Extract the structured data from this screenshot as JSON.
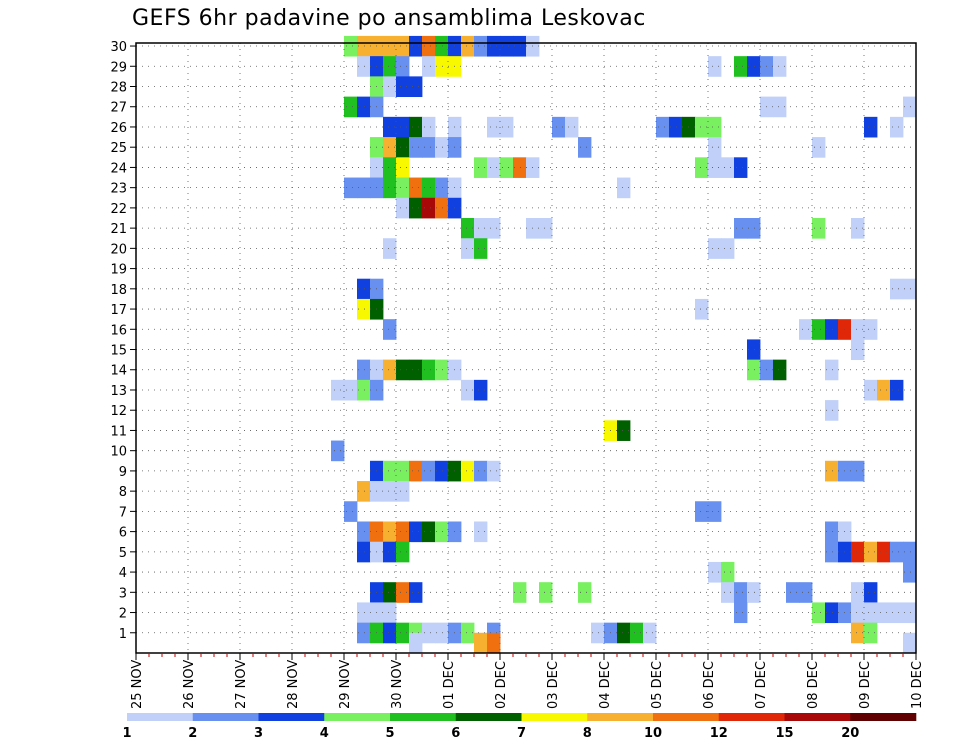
{
  "chart_data": {
    "type": "heatmap",
    "title": "GEFS 6hr padavine po ansamblima Leskovac",
    "xlabel": "",
    "ylabel": "",
    "y_ticks": [
      "1",
      "2",
      "3",
      "4",
      "5",
      "6",
      "7",
      "8",
      "9",
      "10",
      "11",
      "12",
      "13",
      "14",
      "15",
      "16",
      "17",
      "18",
      "19",
      "20",
      "21",
      "22",
      "23",
      "24",
      "25",
      "26",
      "27",
      "28",
      "29",
      "30"
    ],
    "x_ticks": [
      "25 NOV",
      "26 NOV",
      "27 NOV",
      "28 NOV",
      "29 NOV",
      "30 NOV",
      "01 DEC",
      "02 DEC",
      "03 DEC",
      "04 DEC",
      "05 DEC",
      "06 DEC",
      "07 DEC",
      "08 DEC",
      "09 DEC",
      "10 DEC"
    ],
    "x_range_6h_steps": [
      0,
      60
    ],
    "y_range_members": [
      0,
      30
    ],
    "grid": true,
    "colorbar": {
      "position": "bottom",
      "labels": [
        "1",
        "2",
        "3",
        "4",
        "5",
        "6",
        "7",
        "8",
        "10",
        "12",
        "15",
        "20"
      ],
      "colors": [
        "#c0d0f8",
        "#6890f0",
        "#1040e0",
        "#78f060",
        "#20c020",
        "#006000",
        "#f8f800",
        "#f8b030",
        "#f07010",
        "#e02808",
        "#a80808",
        "#600000"
      ]
    },
    "cells": [
      {
        "m": 30,
        "s": 16,
        "c": 4
      },
      {
        "m": 30,
        "s": 17,
        "c": 8
      },
      {
        "m": 30,
        "s": 18,
        "c": 8
      },
      {
        "m": 30,
        "s": 19,
        "c": 8
      },
      {
        "m": 30,
        "s": 20,
        "c": 8
      },
      {
        "m": 30,
        "s": 21,
        "c": 3
      },
      {
        "m": 30,
        "s": 22,
        "c": 9
      },
      {
        "m": 30,
        "s": 23,
        "c": 5
      },
      {
        "m": 30,
        "s": 24,
        "c": 3
      },
      {
        "m": 30,
        "s": 25,
        "c": 8
      },
      {
        "m": 30,
        "s": 26,
        "c": 2
      },
      {
        "m": 30,
        "s": 27,
        "c": 3
      },
      {
        "m": 30,
        "s": 28,
        "c": 3
      },
      {
        "m": 30,
        "s": 29,
        "c": 3
      },
      {
        "m": 30,
        "s": 30,
        "c": 1
      },
      {
        "m": 29,
        "s": 17,
        "c": 1
      },
      {
        "m": 29,
        "s": 18,
        "c": 3
      },
      {
        "m": 29,
        "s": 19,
        "c": 5
      },
      {
        "m": 29,
        "s": 20,
        "c": 2
      },
      {
        "m": 29,
        "s": 22,
        "c": 1
      },
      {
        "m": 29,
        "s": 23,
        "c": 7
      },
      {
        "m": 29,
        "s": 24,
        "c": 7
      },
      {
        "m": 29,
        "s": 44,
        "c": 1
      },
      {
        "m": 29,
        "s": 46,
        "c": 5
      },
      {
        "m": 29,
        "s": 47,
        "c": 3
      },
      {
        "m": 29,
        "s": 48,
        "c": 2
      },
      {
        "m": 29,
        "s": 49,
        "c": 1
      },
      {
        "m": 28,
        "s": 18,
        "c": 4
      },
      {
        "m": 28,
        "s": 19,
        "c": 1
      },
      {
        "m": 28,
        "s": 20,
        "c": 3
      },
      {
        "m": 28,
        "s": 21,
        "c": 3
      },
      {
        "m": 27,
        "s": 16,
        "c": 5
      },
      {
        "m": 27,
        "s": 17,
        "c": 3
      },
      {
        "m": 27,
        "s": 18,
        "c": 2
      },
      {
        "m": 27,
        "s": 48,
        "c": 1
      },
      {
        "m": 27,
        "s": 49,
        "c": 1
      },
      {
        "m": 27,
        "s": 59,
        "c": 1
      },
      {
        "m": 26,
        "s": 19,
        "c": 3
      },
      {
        "m": 26,
        "s": 20,
        "c": 3
      },
      {
        "m": 26,
        "s": 21,
        "c": 6
      },
      {
        "m": 26,
        "s": 22,
        "c": 1
      },
      {
        "m": 26,
        "s": 24,
        "c": 1
      },
      {
        "m": 26,
        "s": 27,
        "c": 1
      },
      {
        "m": 26,
        "s": 28,
        "c": 1
      },
      {
        "m": 26,
        "s": 32,
        "c": 2
      },
      {
        "m": 26,
        "s": 33,
        "c": 1
      },
      {
        "m": 26,
        "s": 40,
        "c": 2
      },
      {
        "m": 26,
        "s": 41,
        "c": 3
      },
      {
        "m": 26,
        "s": 42,
        "c": 6
      },
      {
        "m": 26,
        "s": 43,
        "c": 4
      },
      {
        "m": 26,
        "s": 44,
        "c": 4
      },
      {
        "m": 26,
        "s": 56,
        "c": 3
      },
      {
        "m": 26,
        "s": 58,
        "c": 1
      },
      {
        "m": 25,
        "s": 18,
        "c": 4
      },
      {
        "m": 25,
        "s": 19,
        "c": 8
      },
      {
        "m": 25,
        "s": 20,
        "c": 6
      },
      {
        "m": 25,
        "s": 21,
        "c": 2
      },
      {
        "m": 25,
        "s": 22,
        "c": 2
      },
      {
        "m": 25,
        "s": 23,
        "c": 1
      },
      {
        "m": 25,
        "s": 24,
        "c": 2
      },
      {
        "m": 25,
        "s": 34,
        "c": 2
      },
      {
        "m": 25,
        "s": 44,
        "c": 1
      },
      {
        "m": 25,
        "s": 52,
        "c": 1
      },
      {
        "m": 24,
        "s": 18,
        "c": 1
      },
      {
        "m": 24,
        "s": 19,
        "c": 5
      },
      {
        "m": 24,
        "s": 20,
        "c": 7
      },
      {
        "m": 24,
        "s": 26,
        "c": 4
      },
      {
        "m": 24,
        "s": 27,
        "c": 1
      },
      {
        "m": 24,
        "s": 28,
        "c": 4
      },
      {
        "m": 24,
        "s": 29,
        "c": 9
      },
      {
        "m": 24,
        "s": 30,
        "c": 1
      },
      {
        "m": 24,
        "s": 43,
        "c": 4
      },
      {
        "m": 24,
        "s": 44,
        "c": 1
      },
      {
        "m": 24,
        "s": 45,
        "c": 1
      },
      {
        "m": 24,
        "s": 46,
        "c": 3
      },
      {
        "m": 23,
        "s": 16,
        "c": 2
      },
      {
        "m": 23,
        "s": 17,
        "c": 2
      },
      {
        "m": 23,
        "s": 18,
        "c": 2
      },
      {
        "m": 23,
        "s": 19,
        "c": 5
      },
      {
        "m": 23,
        "s": 20,
        "c": 4
      },
      {
        "m": 23,
        "s": 21,
        "c": 9
      },
      {
        "m": 23,
        "s": 22,
        "c": 5
      },
      {
        "m": 23,
        "s": 23,
        "c": 2
      },
      {
        "m": 23,
        "s": 24,
        "c": 1
      },
      {
        "m": 23,
        "s": 37,
        "c": 1
      },
      {
        "m": 22,
        "s": 20,
        "c": 1
      },
      {
        "m": 22,
        "s": 21,
        "c": 6
      },
      {
        "m": 22,
        "s": 22,
        "c": 11
      },
      {
        "m": 22,
        "s": 23,
        "c": 9
      },
      {
        "m": 22,
        "s": 24,
        "c": 3
      },
      {
        "m": 21,
        "s": 25,
        "c": 5
      },
      {
        "m": 21,
        "s": 26,
        "c": 1
      },
      {
        "m": 21,
        "s": 27,
        "c": 1
      },
      {
        "m": 21,
        "s": 30,
        "c": 1
      },
      {
        "m": 21,
        "s": 31,
        "c": 1
      },
      {
        "m": 21,
        "s": 46,
        "c": 2
      },
      {
        "m": 21,
        "s": 47,
        "c": 2
      },
      {
        "m": 21,
        "s": 52,
        "c": 4
      },
      {
        "m": 21,
        "s": 55,
        "c": 1
      },
      {
        "m": 20,
        "s": 19,
        "c": 1
      },
      {
        "m": 20,
        "s": 25,
        "c": 1
      },
      {
        "m": 20,
        "s": 26,
        "c": 5
      },
      {
        "m": 20,
        "s": 44,
        "c": 1
      },
      {
        "m": 20,
        "s": 45,
        "c": 1
      },
      {
        "m": 18,
        "s": 17,
        "c": 3
      },
      {
        "m": 18,
        "s": 18,
        "c": 2
      },
      {
        "m": 18,
        "s": 58,
        "c": 1
      },
      {
        "m": 18,
        "s": 59,
        "c": 1
      },
      {
        "m": 17,
        "s": 17,
        "c": 7
      },
      {
        "m": 17,
        "s": 18,
        "c": 6
      },
      {
        "m": 17,
        "s": 43,
        "c": 1
      },
      {
        "m": 16,
        "s": 19,
        "c": 2
      },
      {
        "m": 16,
        "s": 51,
        "c": 1
      },
      {
        "m": 16,
        "s": 52,
        "c": 5
      },
      {
        "m": 16,
        "s": 53,
        "c": 3
      },
      {
        "m": 16,
        "s": 54,
        "c": 10
      },
      {
        "m": 16,
        "s": 55,
        "c": 1
      },
      {
        "m": 16,
        "s": 56,
        "c": 1
      },
      {
        "m": 15,
        "s": 47,
        "c": 3
      },
      {
        "m": 15,
        "s": 55,
        "c": 1
      },
      {
        "m": 14,
        "s": 17,
        "c": 2
      },
      {
        "m": 14,
        "s": 18,
        "c": 1
      },
      {
        "m": 14,
        "s": 19,
        "c": 8
      },
      {
        "m": 14,
        "s": 20,
        "c": 6
      },
      {
        "m": 14,
        "s": 21,
        "c": 6
      },
      {
        "m": 14,
        "s": 22,
        "c": 5
      },
      {
        "m": 14,
        "s": 23,
        "c": 4
      },
      {
        "m": 14,
        "s": 24,
        "c": 1
      },
      {
        "m": 14,
        "s": 47,
        "c": 4
      },
      {
        "m": 14,
        "s": 48,
        "c": 2
      },
      {
        "m": 14,
        "s": 49,
        "c": 6
      },
      {
        "m": 14,
        "s": 53,
        "c": 1
      },
      {
        "m": 13,
        "s": 15,
        "c": 1
      },
      {
        "m": 13,
        "s": 16,
        "c": 1
      },
      {
        "m": 13,
        "s": 17,
        "c": 4
      },
      {
        "m": 13,
        "s": 18,
        "c": 2
      },
      {
        "m": 13,
        "s": 25,
        "c": 1
      },
      {
        "m": 13,
        "s": 26,
        "c": 3
      },
      {
        "m": 13,
        "s": 56,
        "c": 1
      },
      {
        "m": 13,
        "s": 57,
        "c": 8
      },
      {
        "m": 13,
        "s": 58,
        "c": 3
      },
      {
        "m": 12,
        "s": 53,
        "c": 1
      },
      {
        "m": 11,
        "s": 36,
        "c": 7
      },
      {
        "m": 11,
        "s": 37,
        "c": 6
      },
      {
        "m": 10,
        "s": 15,
        "c": 2
      },
      {
        "m": 9,
        "s": 18,
        "c": 3
      },
      {
        "m": 9,
        "s": 19,
        "c": 4
      },
      {
        "m": 9,
        "s": 20,
        "c": 4
      },
      {
        "m": 9,
        "s": 21,
        "c": 9
      },
      {
        "m": 9,
        "s": 22,
        "c": 2
      },
      {
        "m": 9,
        "s": 23,
        "c": 3
      },
      {
        "m": 9,
        "s": 24,
        "c": 6
      },
      {
        "m": 9,
        "s": 25,
        "c": 7
      },
      {
        "m": 9,
        "s": 26,
        "c": 2
      },
      {
        "m": 9,
        "s": 27,
        "c": 1
      },
      {
        "m": 9,
        "s": 53,
        "c": 8
      },
      {
        "m": 9,
        "s": 54,
        "c": 2
      },
      {
        "m": 9,
        "s": 55,
        "c": 2
      },
      {
        "m": 8,
        "s": 17,
        "c": 8
      },
      {
        "m": 8,
        "s": 18,
        "c": 1
      },
      {
        "m": 8,
        "s": 19,
        "c": 1
      },
      {
        "m": 8,
        "s": 20,
        "c": 1
      },
      {
        "m": 7,
        "s": 16,
        "c": 2
      },
      {
        "m": 7,
        "s": 43,
        "c": 2
      },
      {
        "m": 7,
        "s": 44,
        "c": 2
      },
      {
        "m": 6,
        "s": 17,
        "c": 2
      },
      {
        "m": 6,
        "s": 18,
        "c": 9
      },
      {
        "m": 6,
        "s": 19,
        "c": 8
      },
      {
        "m": 6,
        "s": 20,
        "c": 9
      },
      {
        "m": 6,
        "s": 21,
        "c": 3
      },
      {
        "m": 6,
        "s": 22,
        "c": 6
      },
      {
        "m": 6,
        "s": 23,
        "c": 4
      },
      {
        "m": 6,
        "s": 24,
        "c": 2
      },
      {
        "m": 6,
        "s": 26,
        "c": 1
      },
      {
        "m": 6,
        "s": 53,
        "c": 2
      },
      {
        "m": 6,
        "s": 54,
        "c": 1
      },
      {
        "m": 5,
        "s": 17,
        "c": 3
      },
      {
        "m": 5,
        "s": 18,
        "c": 1
      },
      {
        "m": 5,
        "s": 19,
        "c": 3
      },
      {
        "m": 5,
        "s": 20,
        "c": 5
      },
      {
        "m": 5,
        "s": 53,
        "c": 2
      },
      {
        "m": 5,
        "s": 54,
        "c": 3
      },
      {
        "m": 5,
        "s": 55,
        "c": 10
      },
      {
        "m": 5,
        "s": 56,
        "c": 8
      },
      {
        "m": 5,
        "s": 57,
        "c": 10
      },
      {
        "m": 5,
        "s": 58,
        "c": 2
      },
      {
        "m": 5,
        "s": 59,
        "c": 2
      },
      {
        "m": 4,
        "s": 44,
        "c": 1
      },
      {
        "m": 4,
        "s": 45,
        "c": 4
      },
      {
        "m": 4,
        "s": 59,
        "c": 2
      },
      {
        "m": 3,
        "s": 18,
        "c": 3
      },
      {
        "m": 3,
        "s": 19,
        "c": 6
      },
      {
        "m": 3,
        "s": 20,
        "c": 9
      },
      {
        "m": 3,
        "s": 21,
        "c": 3
      },
      {
        "m": 3,
        "s": 29,
        "c": 4
      },
      {
        "m": 3,
        "s": 31,
        "c": 4
      },
      {
        "m": 3,
        "s": 34,
        "c": 4
      },
      {
        "m": 3,
        "s": 45,
        "c": 1
      },
      {
        "m": 3,
        "s": 46,
        "c": 2
      },
      {
        "m": 3,
        "s": 47,
        "c": 1
      },
      {
        "m": 3,
        "s": 50,
        "c": 2
      },
      {
        "m": 3,
        "s": 51,
        "c": 2
      },
      {
        "m": 3,
        "s": 55,
        "c": 1
      },
      {
        "m": 3,
        "s": 56,
        "c": 3
      },
      {
        "m": 2,
        "s": 17,
        "c": 1
      },
      {
        "m": 2,
        "s": 18,
        "c": 1
      },
      {
        "m": 2,
        "s": 19,
        "c": 1
      },
      {
        "m": 2,
        "s": 46,
        "c": 2
      },
      {
        "m": 2,
        "s": 52,
        "c": 4
      },
      {
        "m": 2,
        "s": 53,
        "c": 3
      },
      {
        "m": 2,
        "s": 54,
        "c": 2
      },
      {
        "m": 2,
        "s": 55,
        "c": 1
      },
      {
        "m": 2,
        "s": 56,
        "c": 1
      },
      {
        "m": 2,
        "s": 57,
        "c": 1
      },
      {
        "m": 2,
        "s": 58,
        "c": 1
      },
      {
        "m": 2,
        "s": 59,
        "c": 1
      },
      {
        "m": 1,
        "s": 17,
        "c": 2
      },
      {
        "m": 1,
        "s": 18,
        "c": 5
      },
      {
        "m": 1,
        "s": 19,
        "c": 3
      },
      {
        "m": 1,
        "s": 20,
        "c": 5
      },
      {
        "m": 1,
        "s": 21,
        "c": 4
      },
      {
        "m": 1,
        "s": 22,
        "c": 1
      },
      {
        "m": 1,
        "s": 23,
        "c": 1
      },
      {
        "m": 1,
        "s": 24,
        "c": 2
      },
      {
        "m": 1,
        "s": 25,
        "c": 4
      },
      {
        "m": 1,
        "s": 27,
        "c": 2
      },
      {
        "m": 1,
        "s": 35,
        "c": 1
      },
      {
        "m": 1,
        "s": 36,
        "c": 2
      },
      {
        "m": 1,
        "s": 37,
        "c": 6
      },
      {
        "m": 1,
        "s": 38,
        "c": 5
      },
      {
        "m": 1,
        "s": 39,
        "c": 1
      },
      {
        "m": 1,
        "s": 55,
        "c": 8
      },
      {
        "m": 1,
        "s": 56,
        "c": 4
      },
      {
        "m": 0.5,
        "s": 21,
        "c": 1
      },
      {
        "m": 0.5,
        "s": 26,
        "c": 8
      },
      {
        "m": 0.5,
        "s": 27,
        "c": 9
      },
      {
        "m": 0.5,
        "s": 59,
        "c": 1
      }
    ]
  }
}
